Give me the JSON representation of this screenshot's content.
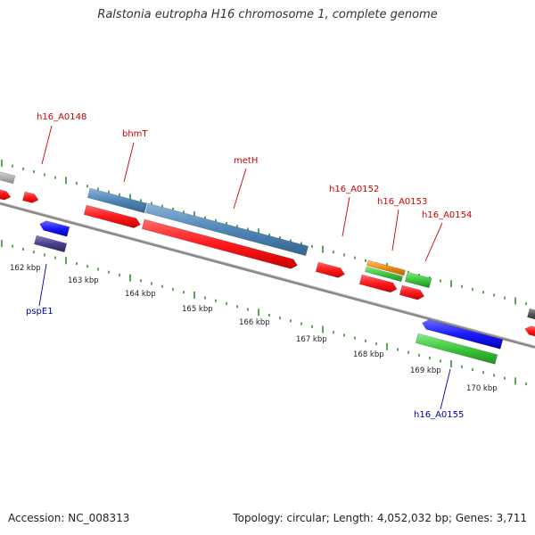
{
  "title": "Ralstonia eutropha H16 chromosome 1, complete genome",
  "footer": {
    "accession": "Accession: NC_008313",
    "summary": "Topology: circular; Length: 4,052,032 bp; Genes: 3,711"
  },
  "colors": {
    "backbone": "#8a8a8a",
    "tick": "#2f8f2f",
    "label_forward": "#cc0000",
    "label_reverse": "#0000aa",
    "cds_red": "#ff1a1a",
    "cds_steelblue": "#4f86b8",
    "cds_blue": "#1a1aff",
    "cds_navy": "#4a3f8c",
    "cds_green": "#3cc83c",
    "cds_orange": "#f08a10",
    "cds_grey": "#b8b8b8",
    "cds_darkgrey": "#555555"
  },
  "scale_labels": [
    "162 kbp",
    "163 kbp",
    "164 kbp",
    "165 kbp",
    "166 kbp",
    "167 kbp",
    "168 kbp",
    "169 kbp",
    "170 kbp"
  ],
  "gene_labels": [
    {
      "name": "h16_A0148",
      "strand": "forward"
    },
    {
      "name": "bhmT",
      "strand": "forward"
    },
    {
      "name": "metH",
      "strand": "forward"
    },
    {
      "name": "h16_A0152",
      "strand": "forward"
    },
    {
      "name": "h16_A0153",
      "strand": "forward"
    },
    {
      "name": "h16_A0154",
      "strand": "forward"
    },
    {
      "name": "pspE1",
      "strand": "reverse"
    },
    {
      "name": "h16_A0155",
      "strand": "reverse"
    }
  ]
}
